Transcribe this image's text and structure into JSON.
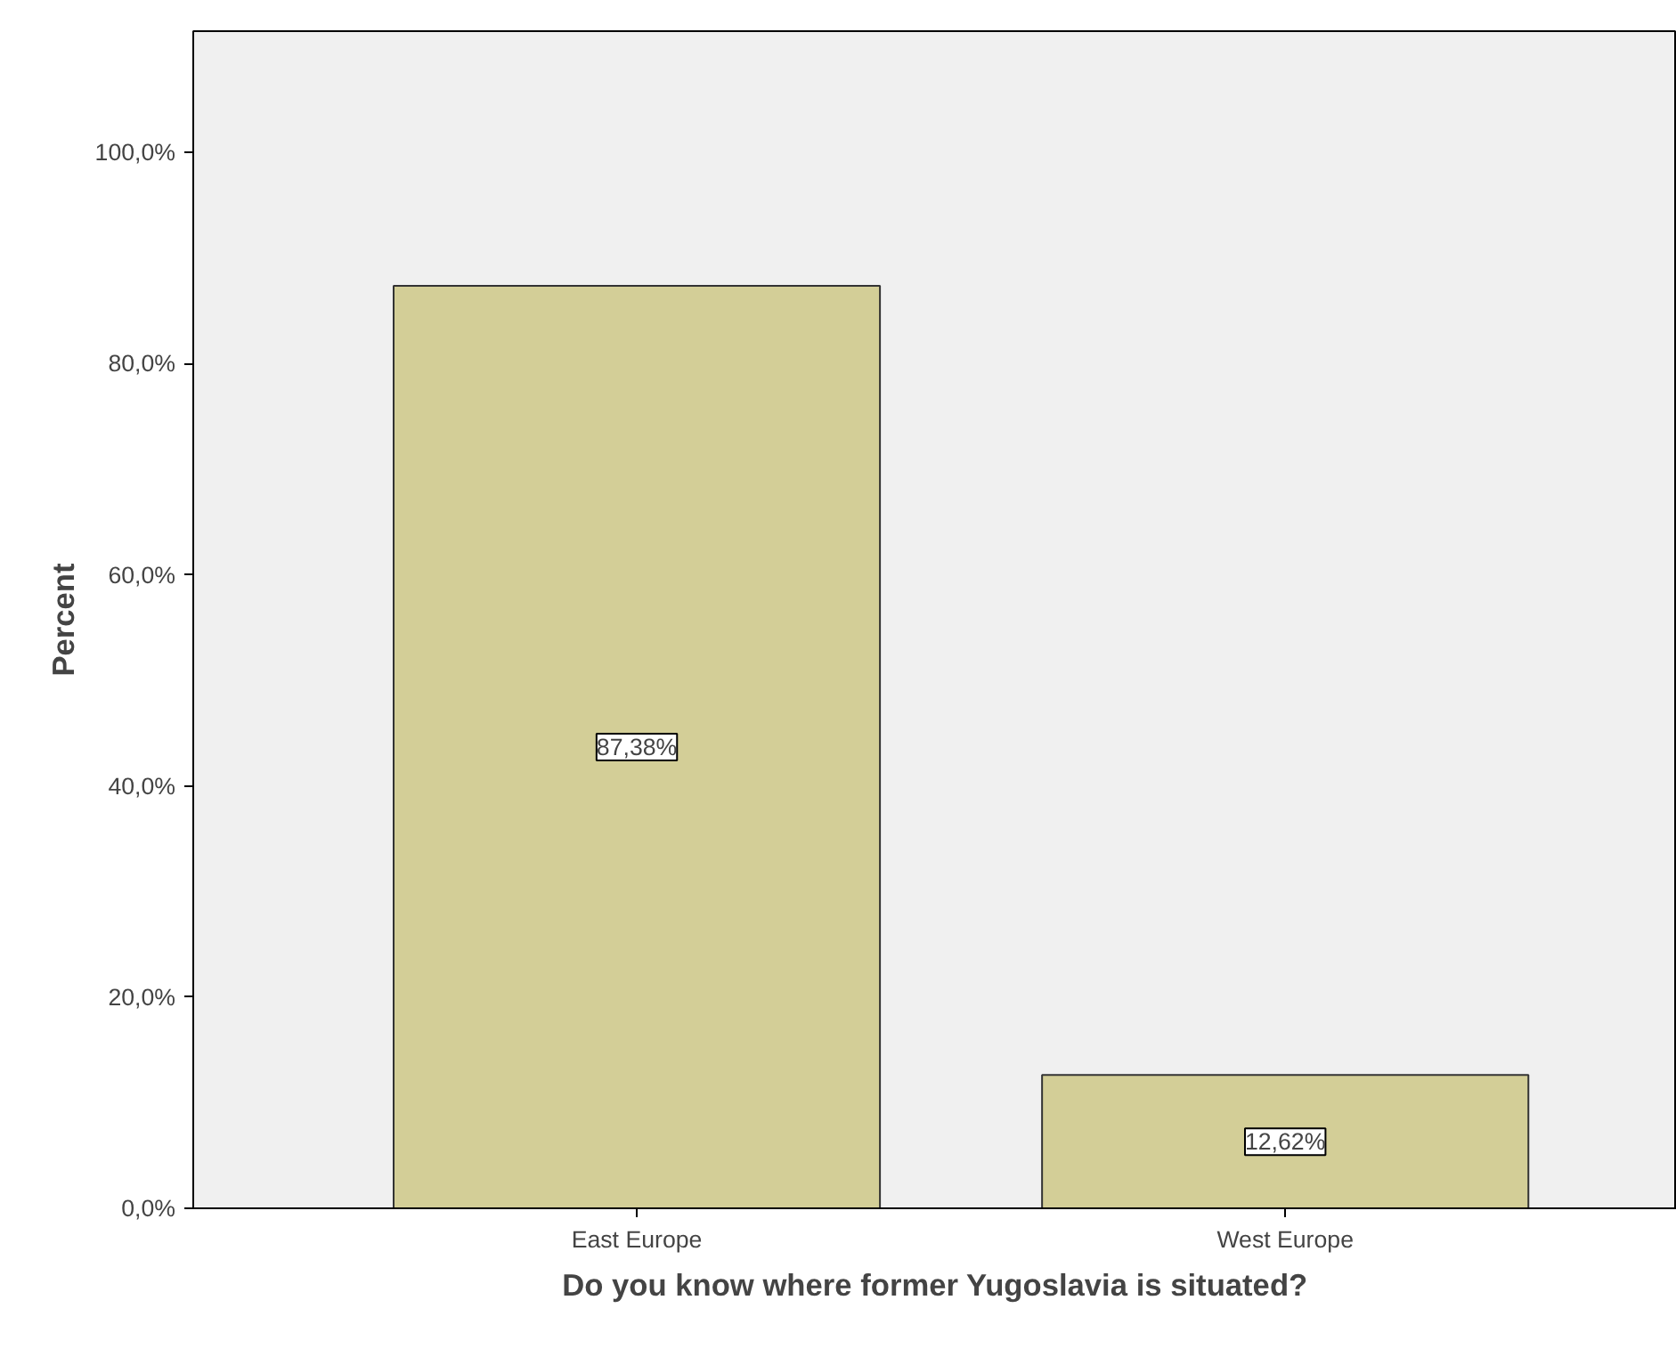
{
  "chart_data": {
    "type": "bar",
    "xlabel": "Do you know where former Yugoslavia is situated?",
    "ylabel": "Percent",
    "categories": [
      "East Europe",
      "West Europe"
    ],
    "values": [
      87.38,
      12.62
    ],
    "value_labels": [
      "87,38%",
      "12,62%"
    ],
    "color": "#d3ce97",
    "ylim": [
      0,
      111.5
    ],
    "yticks": [
      {
        "value": 0,
        "label": "0,0%"
      },
      {
        "value": 20,
        "label": "20,0%"
      },
      {
        "value": 40,
        "label": "40,0%"
      },
      {
        "value": 60,
        "label": "60,0%"
      },
      {
        "value": 80,
        "label": "80,0%"
      },
      {
        "value": 100,
        "label": "100,0%"
      }
    ],
    "grid": false
  }
}
